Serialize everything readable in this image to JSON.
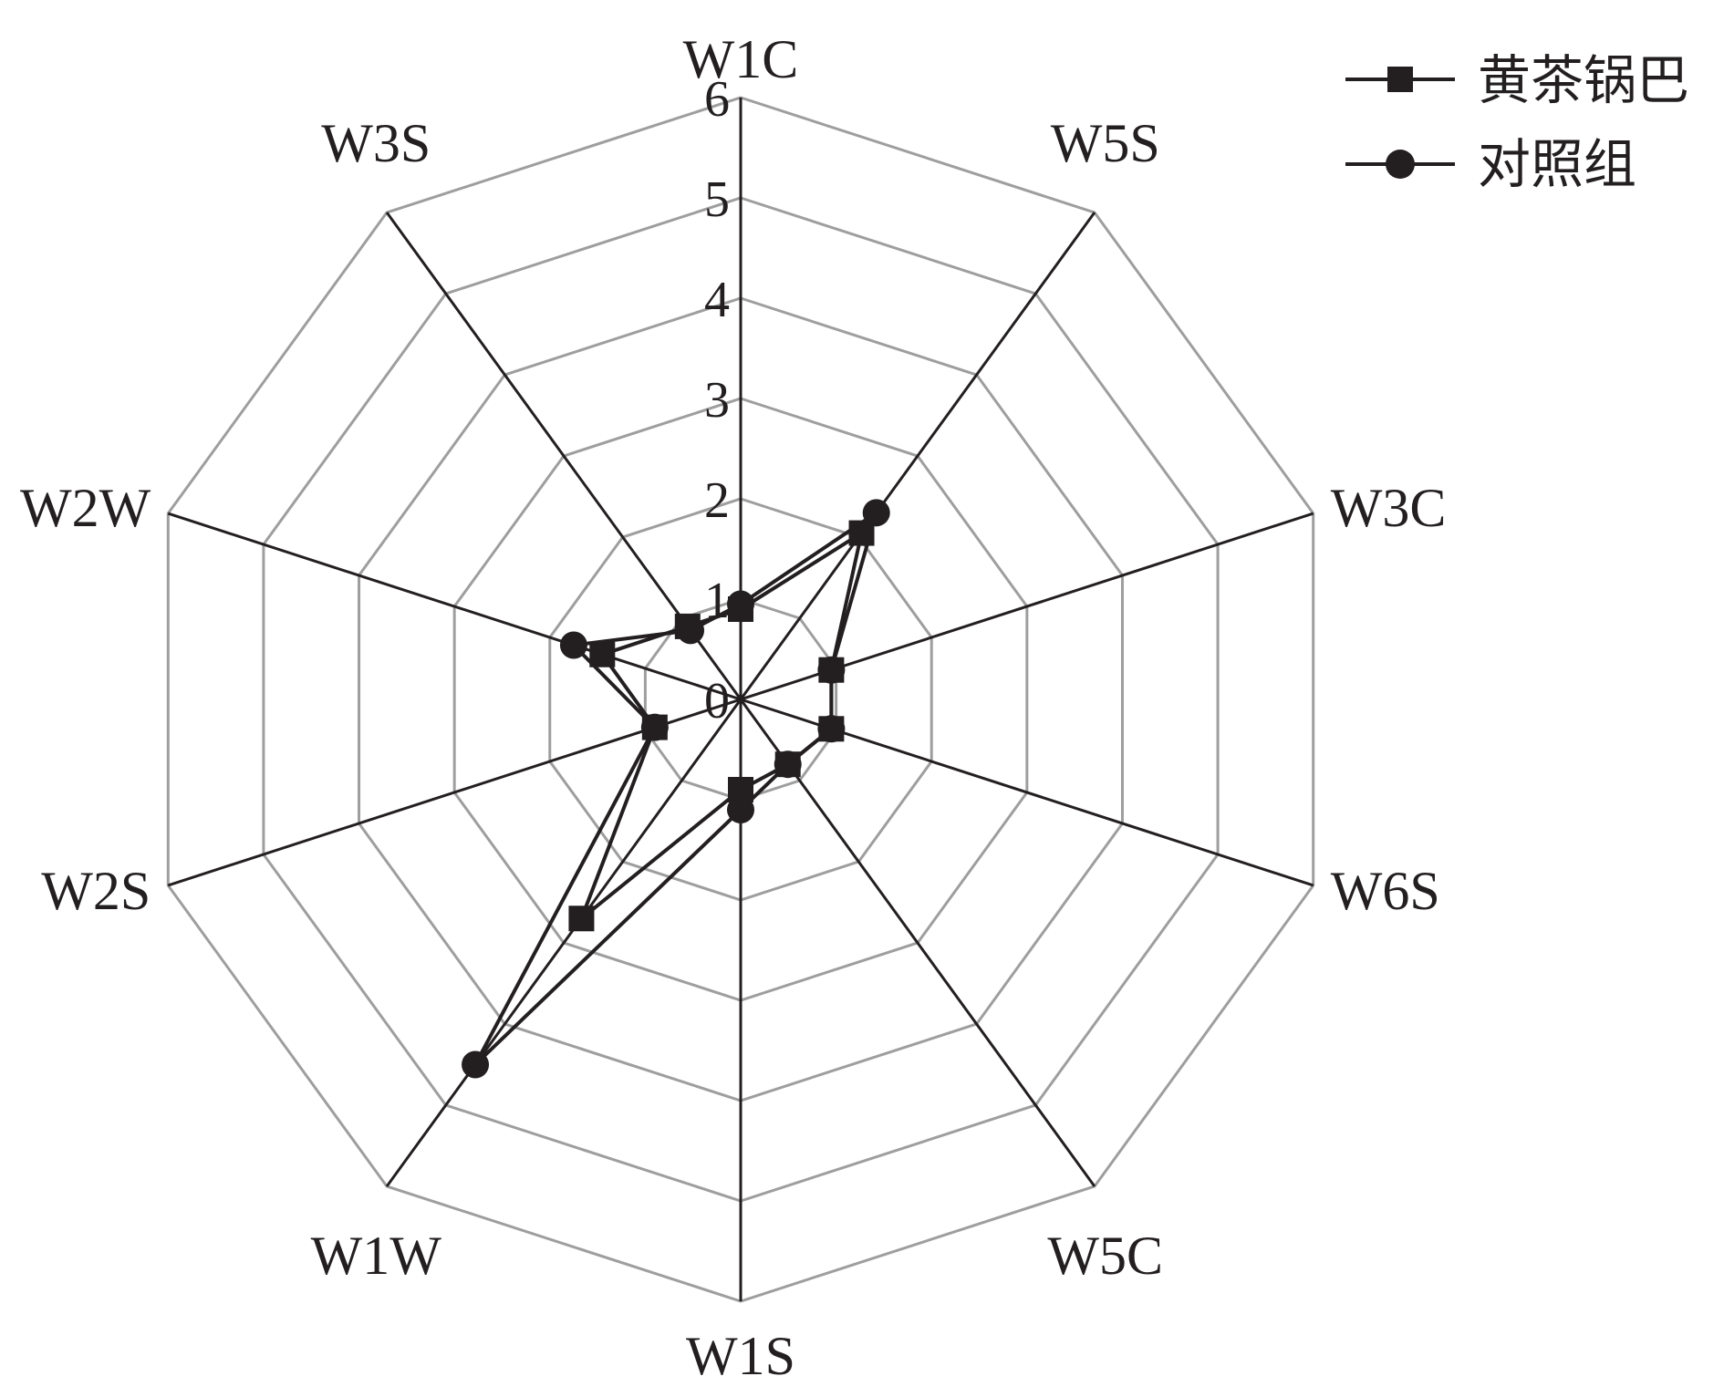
{
  "chart_data": {
    "type": "radar",
    "title": "",
    "axes": [
      "W1C",
      "W5S",
      "W3C",
      "W6S",
      "W5C",
      "W1S",
      "W1W",
      "W2S",
      "W2W",
      "W3S"
    ],
    "rmax": 6,
    "ticks": [
      "0",
      "1",
      "2",
      "3",
      "4",
      "5",
      "6"
    ],
    "grid": true,
    "legend_position": "top-right",
    "series": [
      {
        "name": "黄茶锅巴",
        "marker": "square",
        "values": [
          0.9,
          2.05,
          0.95,
          0.95,
          0.8,
          0.9,
          2.7,
          0.9,
          1.45,
          0.9
        ]
      },
      {
        "name": "对照组",
        "marker": "circle",
        "values": [
          0.95,
          2.3,
          0.95,
          0.95,
          0.8,
          1.1,
          4.5,
          0.9,
          1.75,
          0.85
        ]
      }
    ],
    "colors": {
      "series": "#231f20",
      "grid": "#9e9e9e",
      "axis": "#231f20"
    }
  }
}
